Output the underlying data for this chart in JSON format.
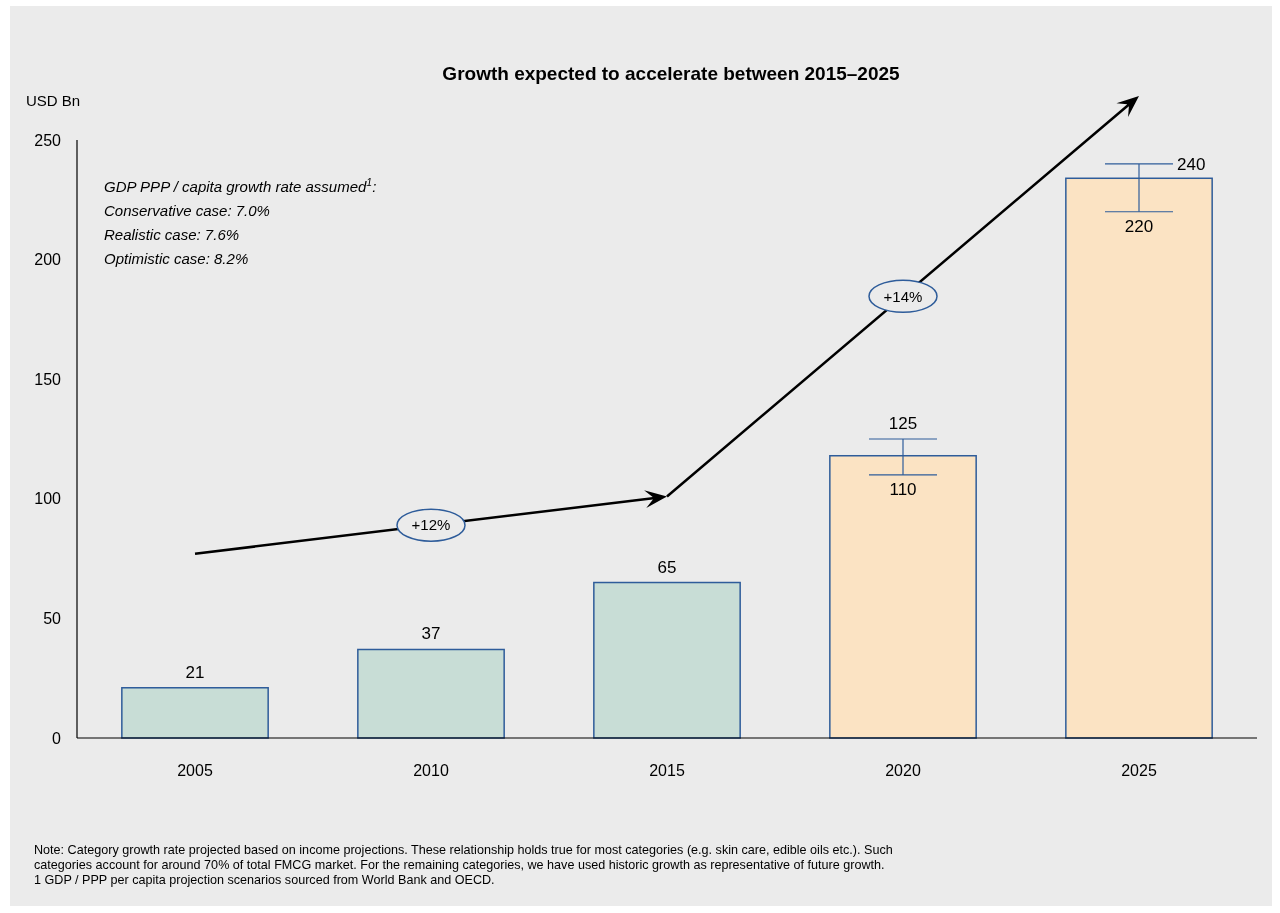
{
  "chart_data": {
    "type": "bar",
    "title": "Growth expected to accelerate between 2015–2025",
    "ylabel": "USD Bn",
    "categories": [
      "2005",
      "2010",
      "2015",
      "2020",
      "2025"
    ],
    "values": [
      21,
      37,
      65,
      118,
      234
    ],
    "colors": [
      "#c8ddd6",
      "#c8ddd6",
      "#c8ddd6",
      "#fbe3c3",
      "#fbe3c3"
    ],
    "errors": [
      null,
      null,
      null,
      [
        110,
        125
      ],
      [
        220,
        240
      ]
    ],
    "value_labels": [
      "21",
      "37",
      "65",
      null,
      null
    ],
    "ylim": [
      0,
      250
    ],
    "yticks": [
      0,
      50,
      100,
      150,
      200,
      250
    ],
    "grid": false,
    "annotations": [
      {
        "text": "125",
        "x": "2020",
        "y": 125
      },
      {
        "text": "110",
        "x": "2020",
        "y": 110
      },
      {
        "text": "240",
        "x": "2025",
        "y": 240
      },
      {
        "text": "220",
        "x": "2025",
        "y": 220
      },
      "GDP PPP / capita growth rate assumed$^{1}$:",
      "Conservative case: 7.0%",
      "Realistic case: 7.6%",
      "Optimistic case: 8.2%",
      "+12%",
      "+14%",
      "Note: Category growth rate projected based on income projections. These relationship holds true for most categories (e.g. skin care, edible oils etc.). Such",
      "categories account for around 70% of total FMCG market. For the remaining categories, we have used historic growth as representative of future growth.",
      "1 GDP / PPP per capita projection scenarios sourced from World Bank and OECD."
    ]
  }
}
